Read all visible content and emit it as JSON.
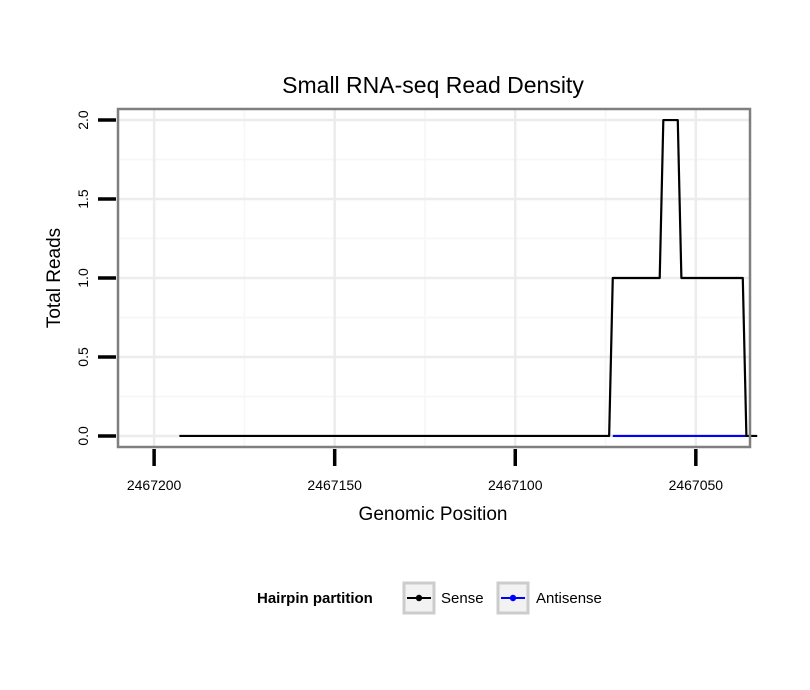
{
  "chart_data": {
    "type": "line",
    "title": "Small RNA-seq Read Density",
    "xlabel": "Genomic Position",
    "ylabel": "Total Reads",
    "x_reversed": true,
    "xlim": [
      2467210,
      2467035
    ],
    "ylim": [
      -0.07,
      2.07
    ],
    "x_ticks": [
      2467200,
      2467150,
      2467100,
      2467050
    ],
    "x_tick_labels": [
      "2467200",
      "2467150",
      "2467100",
      "2467050"
    ],
    "y_ticks": [
      0.0,
      0.5,
      1.0,
      1.5,
      2.0
    ],
    "y_tick_labels": [
      "0.0",
      "0.5",
      "1.0",
      "1.5",
      "2.0"
    ],
    "grid": true,
    "legend": {
      "title": "Hairpin partition",
      "position": "bottom"
    },
    "series": [
      {
        "name": "Sense",
        "color": "#000000",
        "x": [
          2467193,
          2467074,
          2467073,
          2467060,
          2467059,
          2467055,
          2467054,
          2467037,
          2467036,
          2467033
        ],
        "y": [
          0,
          0,
          1,
          1,
          2,
          2,
          1,
          1,
          0,
          0
        ]
      },
      {
        "name": "Antisense",
        "color": "#0000ff",
        "x": [
          2467073,
          2467036
        ],
        "y": [
          0,
          0
        ]
      }
    ]
  }
}
